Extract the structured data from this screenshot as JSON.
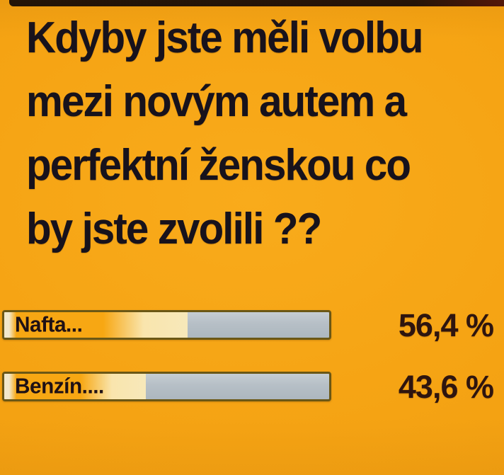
{
  "title": {
    "lines": [
      "Kdyby jste měli volbu",
      "mezi novým autem a",
      "perfektní ženskou co",
      "by jste zvolili ??"
    ]
  },
  "poll": {
    "items": [
      {
        "label": "Nafta...",
        "percent": 56.4,
        "percent_label": "56,4 %"
      },
      {
        "label": "Benzín....",
        "percent": 43.6,
        "percent_label": "43,6 %"
      }
    ]
  },
  "colors": {
    "background_orange": "#f5a313",
    "title_text": "#17121c",
    "bar_border": "#6b5715",
    "bar_unfilled_gray": "#b6bfc6",
    "bar_fill_orange": "#f7a713",
    "bar_fill_cream": "#f7e8ba",
    "percent_text": "#2e150f",
    "top_strip": "#170d08"
  },
  "chart_data": {
    "type": "bar",
    "orientation": "horizontal",
    "title": "Kdyby jste měli volbu mezi novým autem a perfektní ženskou co by jste zvolili ??",
    "categories": [
      "Nafta...",
      "Benzín...."
    ],
    "values": [
      56.4,
      43.6
    ],
    "value_labels": [
      "56,4 %",
      "43,6 %"
    ],
    "xlim": [
      0,
      100
    ],
    "grid": false,
    "legend": false
  }
}
